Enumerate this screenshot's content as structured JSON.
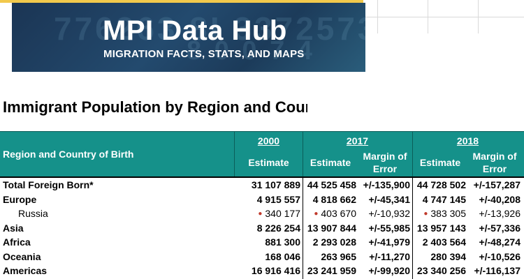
{
  "banner": {
    "title": "MPI Data Hub",
    "subtitle": "MIGRATION FACTS, STATS, AND MAPS"
  },
  "page": {
    "title": "Immigrant Population by Region and Country of Birth"
  },
  "table": {
    "row_header": "Region and Country of Birth",
    "years": [
      {
        "year": "2000",
        "columns": [
          "Estimate"
        ]
      },
      {
        "year": "2017",
        "columns": [
          "Estimate",
          "Margin of Error"
        ]
      },
      {
        "year": "2018",
        "columns": [
          "Estimate",
          "Margin of Error"
        ]
      }
    ],
    "rows": [
      {
        "label": "Total Foreign Born*",
        "indent": false,
        "marked": false,
        "values": [
          "31 107 889",
          "44 525 458",
          "+/-135,900",
          "44 728 502",
          "+/-157,287"
        ]
      },
      {
        "label": "Europe",
        "indent": false,
        "marked": false,
        "values": [
          "4 915 557",
          "4 818 662",
          "+/-45,341",
          "4 747 145",
          "+/-40,208"
        ]
      },
      {
        "label": "Russia",
        "indent": true,
        "marked": true,
        "values": [
          "340 177",
          "403 670",
          "+/-10,932",
          "383 305",
          "+/-13,926"
        ]
      },
      {
        "label": "Asia",
        "indent": false,
        "marked": false,
        "values": [
          "8 226 254",
          "13 907 844",
          "+/-55,985",
          "13 957 143",
          "+/-57,336"
        ]
      },
      {
        "label": "Africa",
        "indent": false,
        "marked": false,
        "values": [
          "881 300",
          "2 293 028",
          "+/-41,979",
          "2 403 564",
          "+/-48,274"
        ]
      },
      {
        "label": "Oceania",
        "indent": false,
        "marked": false,
        "values": [
          "168 046",
          "263 965",
          "+/-11,270",
          "280 394",
          "+/-10,526"
        ]
      },
      {
        "label": "Americas",
        "indent": false,
        "marked": false,
        "values": [
          "16 916 416",
          "23 241 959",
          "+/-99,920",
          "23 340 256",
          "+/-116,137"
        ]
      }
    ]
  },
  "colors": {
    "header_bg": "#15918a",
    "banner_bg": "#1b3554",
    "marker": "#c0392b"
  }
}
